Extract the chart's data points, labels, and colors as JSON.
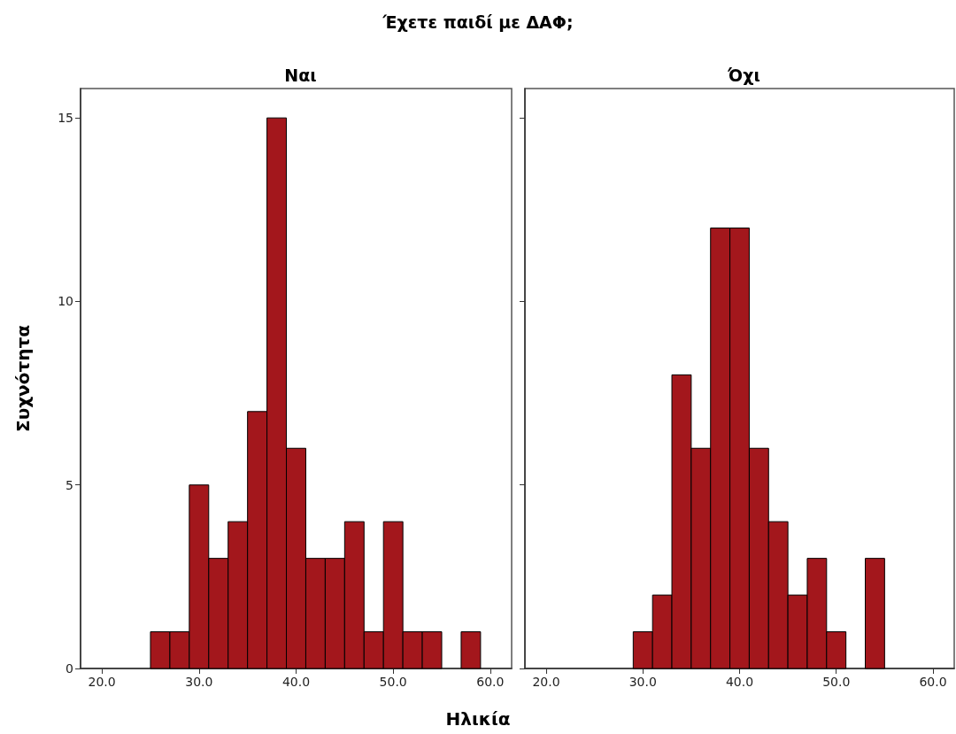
{
  "chart_data": [
    {
      "type": "histogram",
      "title": "Ναι",
      "annotations": [
        "Έχετε παιδί με ΔΑΦ;"
      ],
      "xlabel": "Ηλικία",
      "ylabel": "Συχνότητα",
      "color": "#a3171c",
      "bins": [
        25,
        27,
        29,
        31,
        33,
        35,
        37,
        39,
        41,
        43,
        45,
        47,
        49,
        51,
        53,
        55,
        57,
        59
      ],
      "values": [
        1,
        1,
        5,
        3,
        4,
        7,
        15,
        6,
        3,
        3,
        4,
        1,
        4,
        1,
        1,
        0,
        1
      ],
      "xlim": [
        17.8,
        62.2
      ],
      "xticks": [
        {
          "value": 20,
          "label": "20.0"
        },
        {
          "value": 30,
          "label": "30.0"
        },
        {
          "value": 40,
          "label": "40.0"
        },
        {
          "value": 50,
          "label": "50.0"
        },
        {
          "value": 60,
          "label": "60.0"
        }
      ],
      "ylim": [
        0,
        15.8
      ],
      "yticks": [
        0,
        5,
        10,
        15
      ],
      "grid": false
    },
    {
      "type": "histogram",
      "title": "Όχι",
      "color": "#a3171c",
      "bins": [
        29,
        31,
        33,
        35,
        37,
        39,
        41,
        43,
        45,
        47,
        49,
        51,
        53,
        55
      ],
      "values": [
        1,
        2,
        8,
        6,
        12,
        12,
        6,
        4,
        2,
        3,
        1,
        0,
        3
      ],
      "xlim": [
        17.8,
        62.2
      ],
      "xticks": [
        {
          "value": 20,
          "label": "20.0"
        },
        {
          "value": 30,
          "label": "30.0"
        },
        {
          "value": 40,
          "label": "40.0"
        },
        {
          "value": 50,
          "label": "50.0"
        },
        {
          "value": 60,
          "label": "60.0"
        }
      ],
      "ylim": [
        0,
        15.8
      ],
      "yticks": [
        0,
        5,
        10,
        15
      ],
      "tick_labels": "x",
      "grid": false
    }
  ]
}
